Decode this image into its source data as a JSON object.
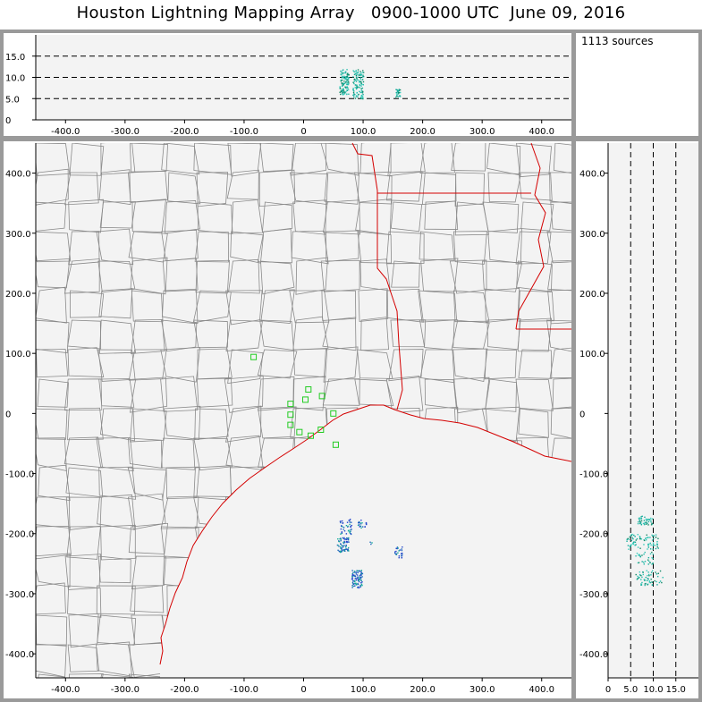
{
  "title": "Houston Lightning Mapping Array   0900-1000 UTC  June 09, 2016",
  "source_count_label": "1113 sources",
  "colors": {
    "border": "#9a9a9a",
    "plot_bg": "#f3f3f3",
    "county_lines": "#8a8a8a",
    "state_lines": "#d40000",
    "station_markers": "#22cc22",
    "source_colors": [
      "#2244cc",
      "#1a66bb",
      "#11aa99",
      "#22bbaa",
      "#33ccbb",
      "#118866"
    ]
  },
  "chart_data": [
    {
      "type": "scatter",
      "name": "altitude-vs-east-west",
      "x_range": [
        -450,
        450
      ],
      "y_range": [
        0,
        20
      ],
      "x_ticks": [
        -400,
        -300,
        -200,
        -100,
        0,
        100,
        200,
        300,
        400
      ],
      "x_tick_labels": [
        "-400.0",
        "-300.0",
        "-200.0",
        "-100.0",
        "0",
        "100.0",
        "200.0",
        "300.0",
        "400.0"
      ],
      "y_ticks": [
        0,
        5,
        10,
        15
      ],
      "y_tick_labels": [
        "0",
        "5.0",
        "10.0",
        "15.0"
      ],
      "reference_lines_y": [
        5,
        10,
        15
      ],
      "clusters": [
        {
          "x": [
            60,
            75
          ],
          "y": [
            6,
            12
          ],
          "count": 120
        },
        {
          "x": [
            82,
            100
          ],
          "y": [
            5,
            12
          ],
          "count": 110
        },
        {
          "x": [
            154,
            162
          ],
          "y": [
            5.5,
            7.5
          ],
          "count": 25
        }
      ]
    },
    {
      "type": "scatter",
      "name": "plan-view-map",
      "x_range": [
        -450,
        450
      ],
      "y_range": [
        -440,
        450
      ],
      "x_ticks": [
        -400,
        -300,
        -200,
        -100,
        0,
        100,
        200,
        300,
        400
      ],
      "x_tick_labels": [
        "-400.0",
        "-300.0",
        "-200.0",
        "-100.0",
        "0",
        "100.0",
        "200.0",
        "300.0",
        "400.0"
      ],
      "y_ticks": [
        -400,
        -300,
        -200,
        -100,
        0,
        100,
        200,
        300,
        400
      ],
      "y_tick_labels": [
        "-400.0",
        "-300.0",
        "-200.0",
        "-100.0",
        "0",
        "100.0",
        "200.0",
        "300.0",
        "400.0"
      ],
      "stations": [
        [
          -84,
          94
        ],
        [
          -22,
          16
        ],
        [
          3,
          23
        ],
        [
          8,
          40
        ],
        [
          31,
          29
        ],
        [
          -22,
          -2
        ],
        [
          -22,
          -19
        ],
        [
          -7,
          -31
        ],
        [
          12,
          -37
        ],
        [
          29,
          -27
        ],
        [
          50,
          0
        ],
        [
          54,
          -52
        ]
      ],
      "clusters": [
        {
          "x": [
            60,
            80
          ],
          "y": [
            -200,
            -175
          ],
          "count": 40
        },
        {
          "x": [
            90,
            105
          ],
          "y": [
            -190,
            -175
          ],
          "count": 20
        },
        {
          "x": [
            55,
            75
          ],
          "y": [
            -230,
            -205
          ],
          "count": 70
        },
        {
          "x": [
            80,
            98
          ],
          "y": [
            -290,
            -260
          ],
          "count": 90
        },
        {
          "x": [
            152,
            165
          ],
          "y": [
            -240,
            -220
          ],
          "count": 25
        },
        {
          "x": [
            111,
            115
          ],
          "y": [
            -217,
            -213
          ],
          "count": 3
        }
      ]
    },
    {
      "type": "scatter",
      "name": "north-south-vs-altitude",
      "x_range": [
        0,
        20
      ],
      "y_range": [
        -440,
        450
      ],
      "x_ticks": [
        0,
        5,
        10,
        15
      ],
      "x_tick_labels": [
        "0",
        "5.0",
        "10.0",
        "15.0"
      ],
      "y_ticks": [
        -400,
        -300,
        -200,
        -100,
        0,
        100,
        200,
        300,
        400
      ],
      "y_tick_labels": [
        "-400.0",
        "-300.0",
        "-200.0",
        "-100.0",
        "0",
        "100.0",
        "200.0",
        "300.0",
        "400.0"
      ],
      "reference_lines_x": [
        5,
        10,
        15
      ],
      "clusters": [
        {
          "x": [
            6.5,
            10
          ],
          "y": [
            -185,
            -170
          ],
          "count": 40
        },
        {
          "x": [
            4,
            11
          ],
          "y": [
            -225,
            -200
          ],
          "count": 80
        },
        {
          "x": [
            6,
            10
          ],
          "y": [
            -250,
            -230
          ],
          "count": 30
        },
        {
          "x": [
            6,
            12
          ],
          "y": [
            -285,
            -260
          ],
          "count": 60
        }
      ]
    }
  ]
}
